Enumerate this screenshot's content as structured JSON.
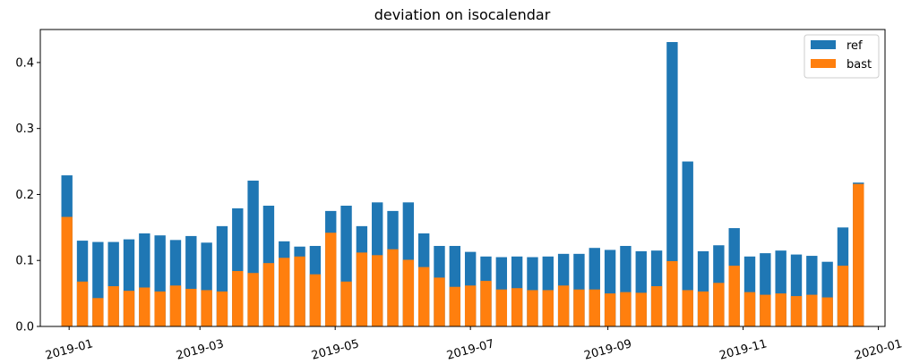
{
  "chart_data": {
    "type": "bar",
    "title": "deviation on isocalendar",
    "xlabel": "",
    "ylabel": "",
    "x_tick_labels": [
      "2019-01",
      "2019-03",
      "2019-05",
      "2019-07",
      "2019-09",
      "2019-11",
      "2020-01"
    ],
    "y_ticks": [
      0.0,
      0.1,
      0.2,
      0.3,
      0.4
    ],
    "y_tick_labels": [
      "0.0",
      "0.1",
      "0.2",
      "0.3",
      "0.4"
    ],
    "ylim": [
      0,
      0.45
    ],
    "xlim": [
      "2018-12-19",
      "2020-01-04"
    ],
    "legend": {
      "position": "top-right",
      "entries": [
        "ref",
        "bast"
      ]
    },
    "x": [
      "2018-12-31",
      "2019-01-07",
      "2019-01-14",
      "2019-01-21",
      "2019-01-28",
      "2019-02-04",
      "2019-02-11",
      "2019-02-18",
      "2019-02-25",
      "2019-03-04",
      "2019-03-11",
      "2019-03-18",
      "2019-03-25",
      "2019-04-01",
      "2019-04-08",
      "2019-04-15",
      "2019-04-22",
      "2019-04-29",
      "2019-05-06",
      "2019-05-13",
      "2019-05-20",
      "2019-05-27",
      "2019-06-03",
      "2019-06-10",
      "2019-06-17",
      "2019-06-24",
      "2019-07-01",
      "2019-07-08",
      "2019-07-15",
      "2019-07-22",
      "2019-07-29",
      "2019-08-05",
      "2019-08-12",
      "2019-08-19",
      "2019-08-26",
      "2019-09-02",
      "2019-09-09",
      "2019-09-16",
      "2019-09-23",
      "2019-09-30",
      "2019-10-07",
      "2019-10-14",
      "2019-10-21",
      "2019-10-28",
      "2019-11-04",
      "2019-11-11",
      "2019-11-18",
      "2019-11-25",
      "2019-12-02",
      "2019-12-09",
      "2019-12-16",
      "2019-12-23"
    ],
    "series": [
      {
        "name": "ref",
        "color": "#1f77b4",
        "values": [
          0.229,
          0.13,
          0.128,
          0.128,
          0.132,
          0.141,
          0.138,
          0.131,
          0.137,
          0.127,
          0.152,
          0.179,
          0.221,
          0.183,
          0.129,
          0.121,
          0.122,
          0.175,
          0.183,
          0.152,
          0.188,
          0.175,
          0.188,
          0.141,
          0.122,
          0.122,
          0.113,
          0.106,
          0.105,
          0.106,
          0.105,
          0.106,
          0.11,
          0.11,
          0.119,
          0.116,
          0.122,
          0.114,
          0.115,
          0.431,
          0.25,
          0.114,
          0.123,
          0.149,
          0.106,
          0.111,
          0.115,
          0.109,
          0.107,
          0.098,
          0.15,
          0.218
        ]
      },
      {
        "name": "bast",
        "color": "#ff7f0e",
        "values": [
          0.166,
          0.068,
          0.043,
          0.061,
          0.054,
          0.059,
          0.053,
          0.062,
          0.057,
          0.055,
          0.053,
          0.084,
          0.081,
          0.096,
          0.104,
          0.106,
          0.079,
          0.142,
          0.068,
          0.112,
          0.108,
          0.117,
          0.101,
          0.09,
          0.074,
          0.06,
          0.062,
          0.069,
          0.056,
          0.058,
          0.055,
          0.055,
          0.062,
          0.056,
          0.056,
          0.05,
          0.052,
          0.051,
          0.061,
          0.099,
          0.055,
          0.053,
          0.066,
          0.092,
          0.052,
          0.048,
          0.05,
          0.046,
          0.048,
          0.044,
          0.092,
          0.216
        ]
      }
    ]
  }
}
